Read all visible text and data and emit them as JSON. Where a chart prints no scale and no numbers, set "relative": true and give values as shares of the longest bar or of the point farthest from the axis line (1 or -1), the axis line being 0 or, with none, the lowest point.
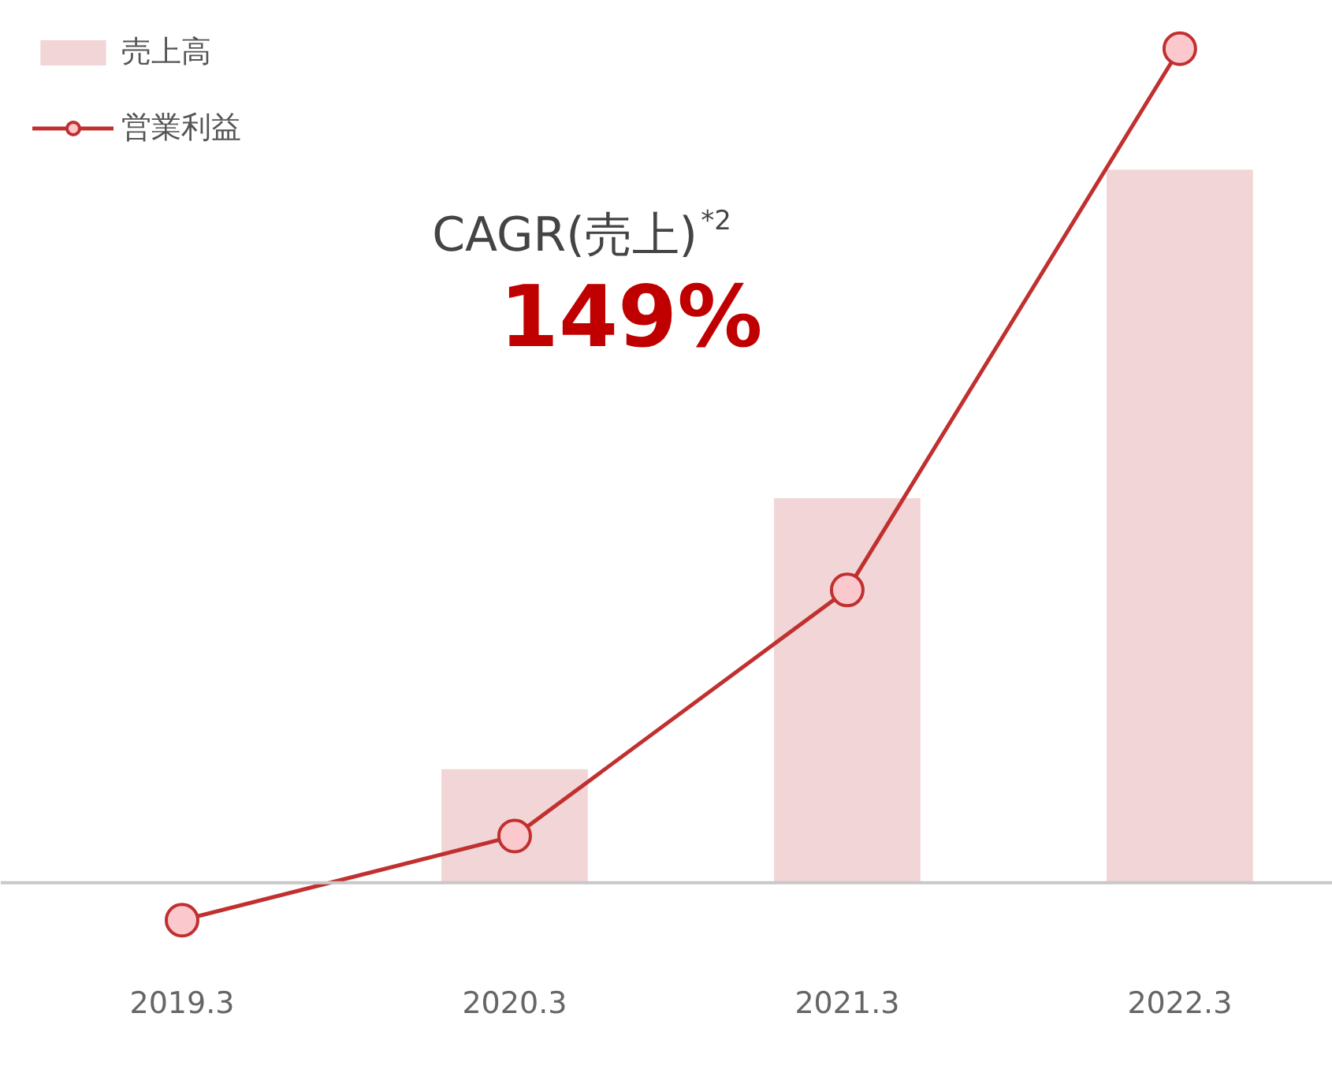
{
  "chart_data": {
    "type": "bar",
    "relative": true,
    "categories": [
      "2019.3",
      "2020.3",
      "2021.3",
      "2022.3"
    ],
    "series": [
      {
        "name": "売上高",
        "color": "#f2d5d6",
        "values": [
          0,
          0.136,
          0.461,
          0.855
        ]
      },
      {
        "name": "営業利益",
        "type": "line",
        "color": "#c0302f",
        "marker": "circle",
        "values": [
          -0.045,
          0.056,
          0.351,
          1
        ]
      }
    ],
    "annotations": [
      "CAGR(売上)$^{*2}$",
      "149%"
    ],
    "legend": "top left",
    "grid": false
  }
}
